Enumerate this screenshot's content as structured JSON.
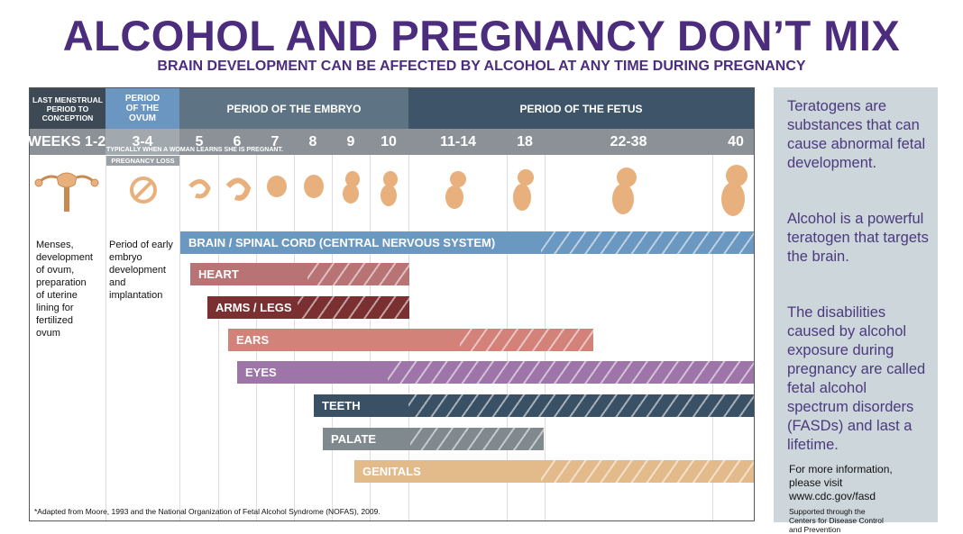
{
  "header": {
    "title": "ALCOHOL AND PREGNANCY DON’T MIX",
    "subtitle": "BRAIN DEVELOPMENT CAN BE AFFECTED BY ALCOHOL AT ANY TIME DURING PREGNANCY"
  },
  "table": {
    "periods": [
      "LAST MENSTRUAL PERIOD TO CONCEPTION",
      "PERIOD OF THE OVUM",
      "PERIOD OF THE EMBRYO",
      "PERIOD OF THE FETUS"
    ],
    "weeks": [
      "WEEKS 1-2",
      "3-4",
      "5",
      "6",
      "7",
      "8",
      "9",
      "10",
      "11-14",
      "18",
      "22-38",
      "40"
    ],
    "notes": {
      "learns": "TYPICALLY WHEN A WOMAN LEARNS SHE IS PREGNANT.",
      "loss": "PREGNANCY LOSS"
    },
    "descriptions": [
      "Menses, development of ovum, preparation of uterine lining for fertilized ovum",
      "Period of early embryo development and implantation"
    ],
    "bars": [
      "BRAIN / SPINAL CORD (CENTRAL NERVOUS SYSTEM)",
      "HEART",
      "ARMS / LEGS",
      "EARS",
      "EYES",
      "TEETH",
      "PALATE",
      "GENITALS"
    ],
    "footnote": "*Adapted from Moore, 1993 and the National Organization of Fetal Alcohol Syndrome (NOFAS), 2009."
  },
  "sidebar": {
    "paragraphs": [
      "Teratogens are substances that can cause abnormal fetal development.",
      "Alcohol is a powerful teratogen that targets the brain.",
      "The disabilities caused by alcohol exposure during pregnancy are called fetal alcohol spectrum disorders (FASDs) and last a lifetime."
    ],
    "more_info": "For more information, please visit www.cdc.gov/fasd",
    "supported": "Supported through the Centers for Disease Control and Prevention"
  }
}
